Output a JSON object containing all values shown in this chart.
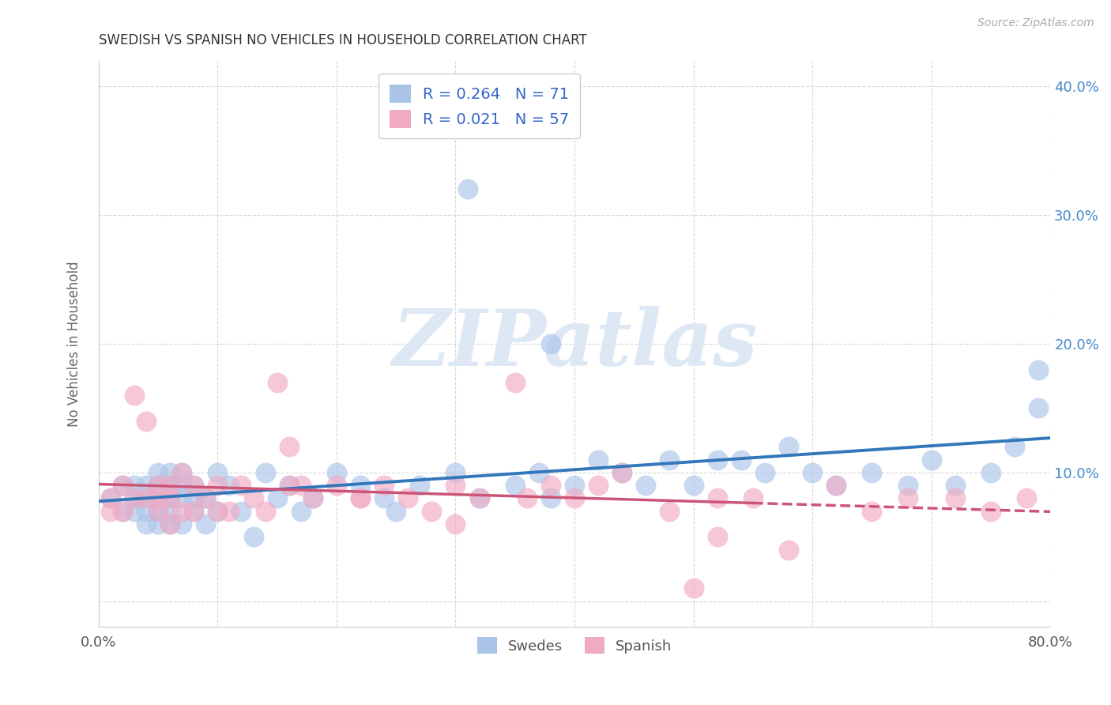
{
  "title": "SWEDISH VS SPANISH NO VEHICLES IN HOUSEHOLD CORRELATION CHART",
  "source": "Source: ZipAtlas.com",
  "ylabel": "No Vehicles in Household",
  "xlim": [
    0.0,
    0.8
  ],
  "ylim": [
    -0.02,
    0.42
  ],
  "xticks": [
    0.0,
    0.1,
    0.2,
    0.3,
    0.4,
    0.5,
    0.6,
    0.7,
    0.8
  ],
  "xticklabels": [
    "0.0%",
    "",
    "",
    "",
    "",
    "",
    "",
    "",
    "80.0%"
  ],
  "yticks": [
    0.0,
    0.1,
    0.2,
    0.3,
    0.4
  ],
  "background_color": "#ffffff",
  "grid_color": "#d8d8d8",
  "watermark_text": "ZIPatlas",
  "legend_R_swedish": "R = 0.264",
  "legend_N_swedish": "N = 71",
  "legend_R_spanish": "R = 0.021",
  "legend_N_spanish": "N = 57",
  "swedish_color": "#aac4e8",
  "spanish_color": "#f0aac4",
  "swedish_line_color": "#3377bb",
  "spanish_line_color": "#cc5577",
  "title_color": "#333333",
  "axis_label_color": "#666666",
  "right_tick_color": "#4488cc",
  "legend_text_color": "#3366cc",
  "swedish_points_x": [
    0.01,
    0.02,
    0.02,
    0.03,
    0.03,
    0.03,
    0.04,
    0.04,
    0.04,
    0.04,
    0.05,
    0.05,
    0.05,
    0.05,
    0.05,
    0.06,
    0.06,
    0.06,
    0.06,
    0.06,
    0.07,
    0.07,
    0.07,
    0.07,
    0.08,
    0.08,
    0.08,
    0.09,
    0.09,
    0.1,
    0.1,
    0.11,
    0.12,
    0.13,
    0.14,
    0.15,
    0.16,
    0.17,
    0.18,
    0.2,
    0.22,
    0.24,
    0.25,
    0.27,
    0.3,
    0.32,
    0.35,
    0.37,
    0.4,
    0.42,
    0.44,
    0.46,
    0.48,
    0.5,
    0.52,
    0.54,
    0.56,
    0.58,
    0.6,
    0.62,
    0.65,
    0.68,
    0.7,
    0.72,
    0.75,
    0.77,
    0.79,
    0.31,
    0.38,
    0.79,
    0.38
  ],
  "swedish_points_y": [
    0.08,
    0.09,
    0.07,
    0.09,
    0.08,
    0.07,
    0.09,
    0.08,
    0.07,
    0.06,
    0.1,
    0.09,
    0.08,
    0.07,
    0.06,
    0.1,
    0.09,
    0.08,
    0.07,
    0.06,
    0.1,
    0.09,
    0.08,
    0.06,
    0.09,
    0.08,
    0.07,
    0.08,
    0.06,
    0.1,
    0.07,
    0.09,
    0.07,
    0.05,
    0.1,
    0.08,
    0.09,
    0.07,
    0.08,
    0.1,
    0.09,
    0.08,
    0.07,
    0.09,
    0.1,
    0.08,
    0.09,
    0.1,
    0.09,
    0.11,
    0.1,
    0.09,
    0.11,
    0.09,
    0.11,
    0.11,
    0.1,
    0.12,
    0.1,
    0.09,
    0.1,
    0.09,
    0.11,
    0.09,
    0.1,
    0.12,
    0.15,
    0.32,
    0.2,
    0.18,
    0.08
  ],
  "spanish_points_x": [
    0.01,
    0.01,
    0.02,
    0.02,
    0.03,
    0.03,
    0.04,
    0.04,
    0.05,
    0.05,
    0.05,
    0.06,
    0.06,
    0.06,
    0.07,
    0.07,
    0.08,
    0.08,
    0.09,
    0.1,
    0.1,
    0.11,
    0.12,
    0.13,
    0.14,
    0.15,
    0.16,
    0.17,
    0.18,
    0.2,
    0.22,
    0.24,
    0.26,
    0.28,
    0.3,
    0.32,
    0.35,
    0.38,
    0.4,
    0.44,
    0.48,
    0.52,
    0.55,
    0.58,
    0.62,
    0.65,
    0.68,
    0.72,
    0.75,
    0.78,
    0.36,
    0.42,
    0.5,
    0.16,
    0.22,
    0.3,
    0.52
  ],
  "spanish_points_y": [
    0.08,
    0.07,
    0.09,
    0.07,
    0.16,
    0.08,
    0.14,
    0.08,
    0.09,
    0.08,
    0.07,
    0.09,
    0.08,
    0.06,
    0.1,
    0.07,
    0.09,
    0.07,
    0.08,
    0.09,
    0.07,
    0.07,
    0.09,
    0.08,
    0.07,
    0.17,
    0.12,
    0.09,
    0.08,
    0.09,
    0.08,
    0.09,
    0.08,
    0.07,
    0.06,
    0.08,
    0.17,
    0.09,
    0.08,
    0.1,
    0.07,
    0.05,
    0.08,
    0.04,
    0.09,
    0.07,
    0.08,
    0.08,
    0.07,
    0.08,
    0.08,
    0.09,
    0.01,
    0.09,
    0.08,
    0.09,
    0.08
  ]
}
